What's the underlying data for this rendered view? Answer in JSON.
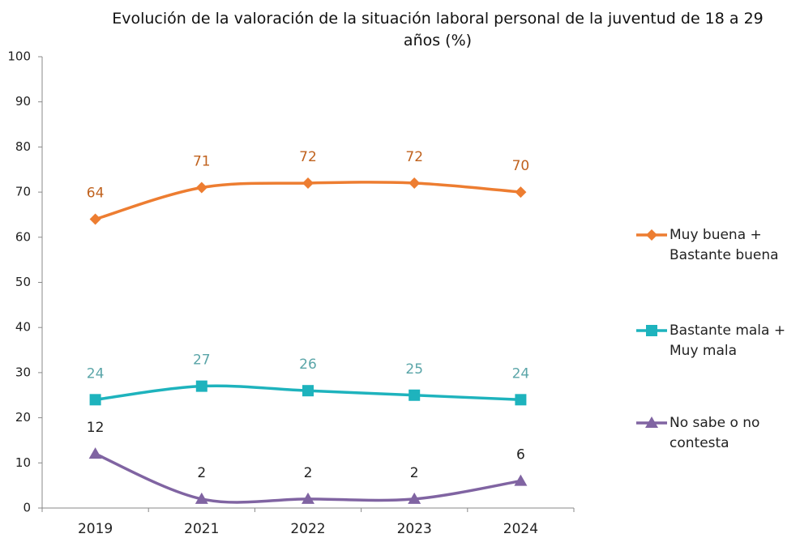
{
  "chart_data": {
    "type": "line",
    "title": "Evolución de la valoración de la situación laboral personal de la juventud de 18 a 29 años (%)",
    "categories": [
      "2019",
      "2021",
      "2022",
      "2023",
      "2024"
    ],
    "series": [
      {
        "name": "Muy buena + Bastante buena",
        "color": "#ed7d31",
        "label_color": "#c0621e",
        "marker": "diamond",
        "values": [
          64,
          71,
          72,
          72,
          70
        ]
      },
      {
        "name": "Bastante mala + Muy mala",
        "color": "#1eb3bd",
        "label_color": "#5aa5a8",
        "marker": "square",
        "values": [
          24,
          27,
          26,
          25,
          24
        ]
      },
      {
        "name": "No sabe o no contesta",
        "color": "#8064a2",
        "label_color": "#222222",
        "marker": "triangle",
        "values": [
          12,
          2,
          2,
          2,
          6
        ]
      }
    ],
    "ylim": [
      0,
      100
    ],
    "yticks": [
      0,
      10,
      20,
      30,
      40,
      50,
      60,
      70,
      80,
      90,
      100
    ],
    "legend": "right",
    "grid": false
  }
}
